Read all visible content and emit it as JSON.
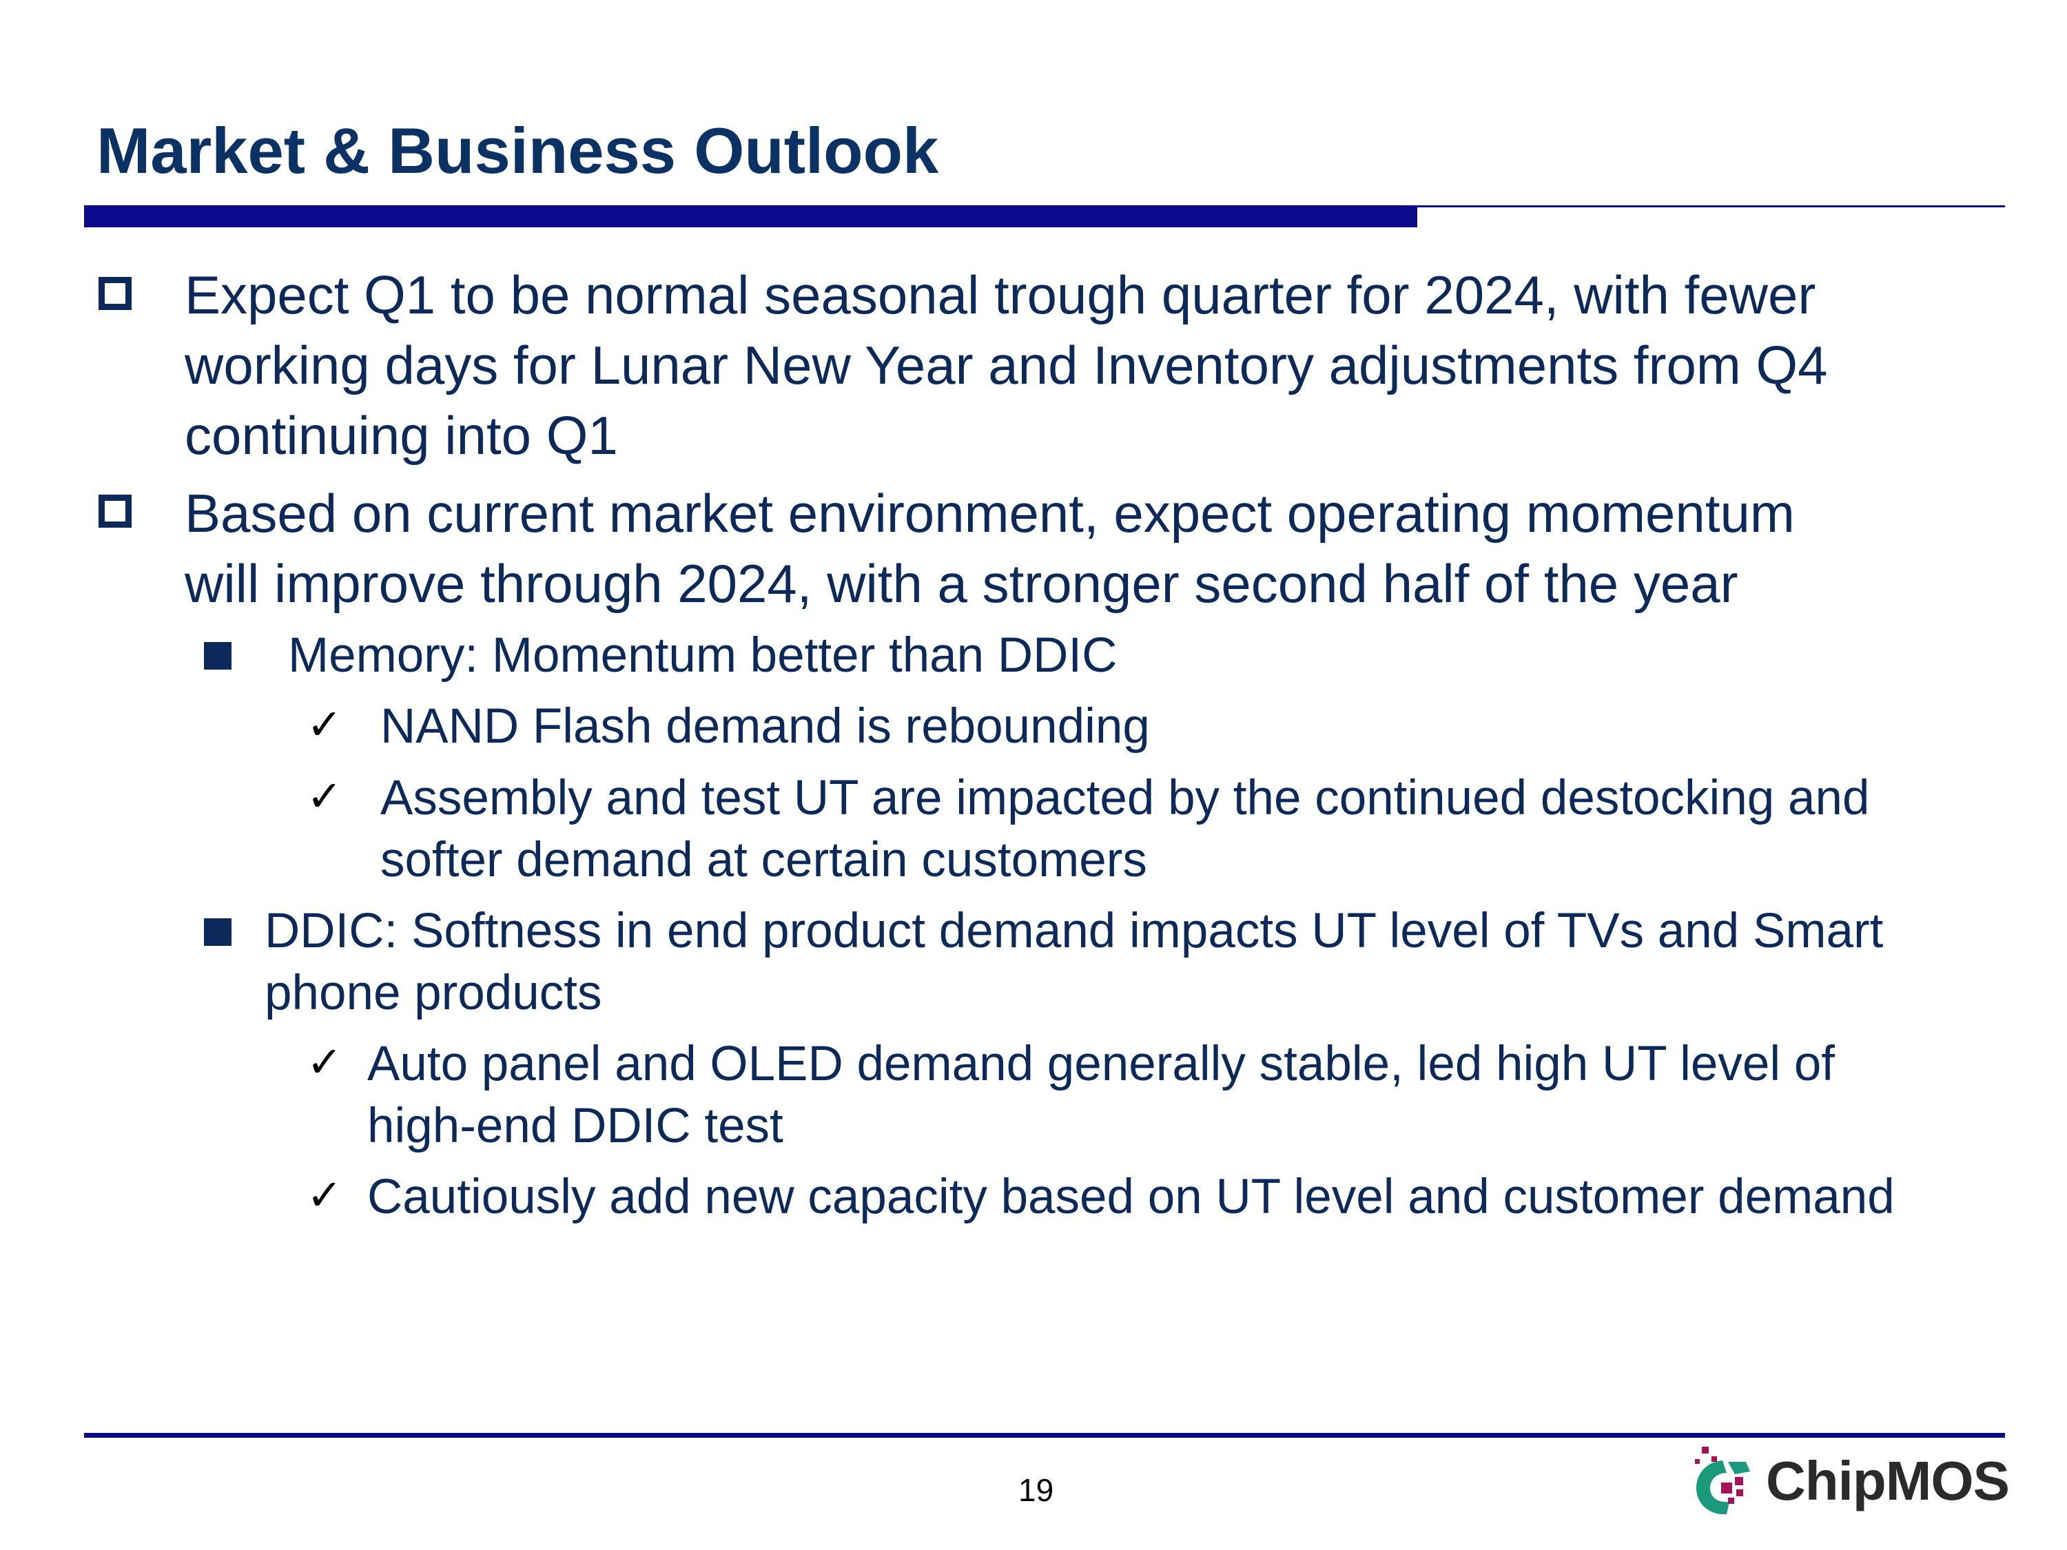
{
  "slide": {
    "title": "Market & Business Outlook",
    "page_number": "19",
    "logo_text": "ChipMOS"
  },
  "bullets": {
    "b1_lines": [
      "Expect Q1 to be normal seasonal trough quarter for 2024, with fewer",
      "working days for Lunar New Year and Inventory adjustments from Q4",
      "continuing into Q1"
    ],
    "b2_lines": [
      "Based on current market environment, expect operating momentum",
      "will improve through 2024, with a stronger second half of the year"
    ],
    "memory": {
      "label": "Memory: Momentum better than DDIC",
      "checks": [
        "NAND Flash demand is rebounding",
        "Assembly and test UT are impacted by the continued destocking and",
        "softer demand at certain customers"
      ]
    },
    "ddic": {
      "lines": [
        "DDIC: Softness in end product demand impacts UT level of TVs and Smart",
        "phone products"
      ],
      "checks": [
        "Auto panel and OLED demand generally stable, led high UT level of",
        "high-end DDIC test",
        "Cautiously add new capacity based on UT level and customer demand"
      ]
    },
    "check_glyph": "✓"
  },
  "colors": {
    "title": "#0b3264",
    "text": "#0b2a5b",
    "rule": "#0a0a8a",
    "logo_green": "#1a9a7a",
    "logo_magenta": "#a4125a"
  }
}
